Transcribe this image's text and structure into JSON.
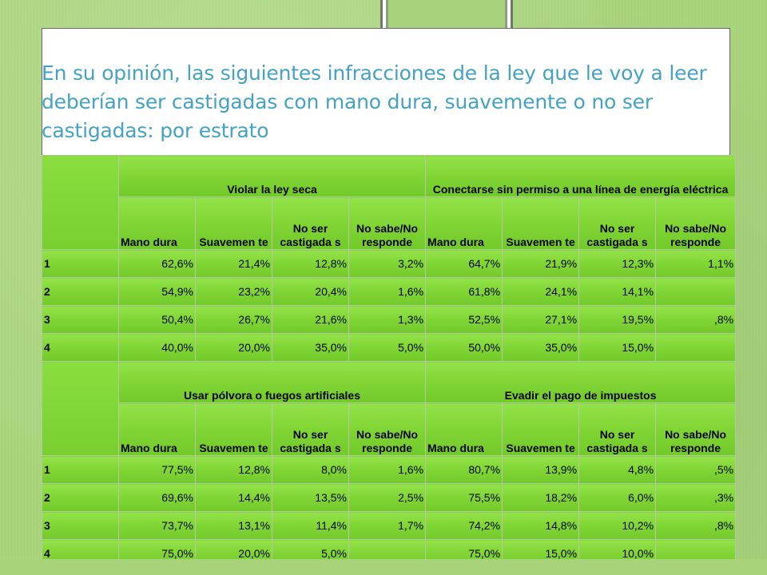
{
  "title": "En su opinión, las siguientes infracciones de la ley que le voy a leer deberían ser castigadas con mano dura, suavemente o no ser castigadas: por estrato",
  "column_labels": [
    "Mano dura",
    "Suavemente",
    "No ser castigadas",
    "No sabe/No responde"
  ],
  "column_label_display": {
    "mano_dura": "Mano dura",
    "suavemente": "Suavemen te",
    "no_ser": "No ser castigada s",
    "no_sabe": "No sabe/No responde"
  },
  "table1": {
    "groups": [
      "Violar la ley seca",
      "Conectarse sin permiso a una línea de energía eléctrica"
    ],
    "rows": [
      {
        "estrato": "1",
        "values": [
          "62,6%",
          "21,4%",
          "12,8%",
          "3,2%",
          "64,7%",
          "21,9%",
          "12,3%",
          "1,1%"
        ]
      },
      {
        "estrato": "2",
        "values": [
          "54,9%",
          "23,2%",
          "20,4%",
          "1,6%",
          "61,8%",
          "24,1%",
          "14,1%",
          ""
        ]
      },
      {
        "estrato": "3",
        "values": [
          "50,4%",
          "26,7%",
          "21,6%",
          "1,3%",
          "52,5%",
          "27,1%",
          "19,5%",
          ",8%"
        ]
      },
      {
        "estrato": "4",
        "values": [
          "40,0%",
          "20,0%",
          "35,0%",
          "5,0%",
          "50,0%",
          "35,0%",
          "15,0%",
          ""
        ]
      }
    ]
  },
  "table2": {
    "groups": [
      "Usar pólvora o fuegos artificiales",
      "Evadir el pago de impuestos"
    ],
    "rows": [
      {
        "estrato": "1",
        "values": [
          "77,5%",
          "12,8%",
          "8,0%",
          "1,6%",
          "80,7%",
          "13,9%",
          "4,8%",
          ",5%"
        ]
      },
      {
        "estrato": "2",
        "values": [
          "69,6%",
          "14,4%",
          "13,5%",
          "2,5%",
          "75,5%",
          "18,2%",
          "6,0%",
          ",3%"
        ]
      },
      {
        "estrato": "3",
        "values": [
          "73,7%",
          "13,1%",
          "11,4%",
          "1,7%",
          "74,2%",
          "14,8%",
          "10,2%",
          ",8%"
        ]
      },
      {
        "estrato": "4",
        "values": [
          "75,0%",
          "20,0%",
          "5,0%",
          "",
          "75,0%",
          "15,0%",
          "10,0%",
          ""
        ]
      }
    ]
  },
  "colors": {
    "background": "#a8d37a",
    "title": "#44a2c4",
    "cell_green": "#80d534"
  }
}
